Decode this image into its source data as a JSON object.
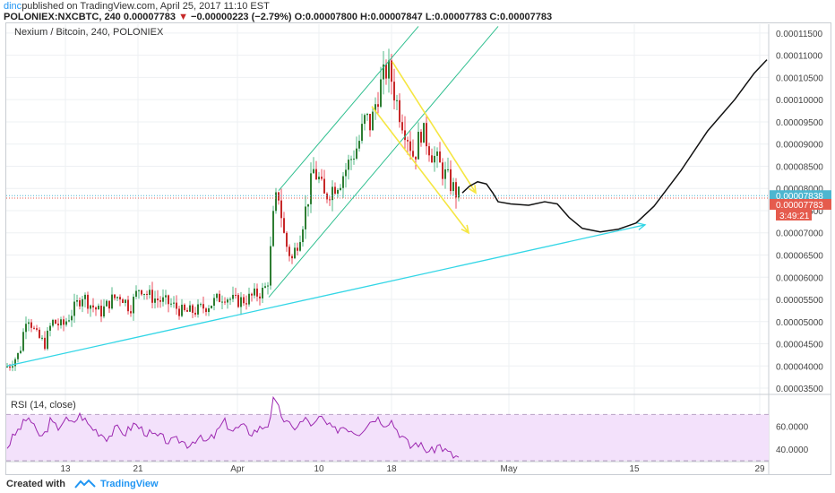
{
  "header": {
    "user": "dinc",
    "published": "published on TradingView.com, April 25, 2017 11:10 EST",
    "symbol": "POLONIEX:NXCBTC, 240",
    "last": "0.00007783",
    "change_marker": "▼",
    "change": "−0.00000223 (−2.79%)",
    "o_label": "O:",
    "o": "0.00007800",
    "h_label": "H:",
    "h": "0.00007847",
    "l_label": "L:",
    "l": "0.00007783",
    "c_label": "C:",
    "c": "0.00007783"
  },
  "footer": {
    "created_with": "Created with",
    "brand": "TradingView"
  },
  "colors": {
    "up": "#53b987",
    "down": "#eb4d5c",
    "body_up": "#2e7d32",
    "body_down": "#c62828",
    "trendline": "#33d6e6",
    "channel": "#2fbf8f",
    "arrow": "#f5e642",
    "projection": "#111111",
    "rsi_line": "#9c27b0",
    "rsi_band": "#f3e1fb",
    "bid_label": "#4db6d0",
    "last_label": "#e55b4d"
  },
  "chart_data": [
    {
      "type": "candlestick",
      "title": "Nexium / Bitcoin, 240, POLONIEX",
      "x_ticks": [
        "13",
        "21",
        "Apr",
        "10",
        "18",
        "May",
        "15",
        "29"
      ],
      "y_ticks": [
        "0.00011500",
        "0.00011000",
        "0.00010500",
        "0.00010000",
        "0.00009500",
        "0.00009000",
        "0.00008500",
        "0.00008000",
        "0.00007500",
        "0.00007000",
        "0.00006500",
        "0.00006000",
        "0.00005500",
        "0.00005000",
        "0.00004500",
        "0.00004000",
        "0.00003500"
      ],
      "ylim": [
        3.4e-05,
        1.17e-05
      ],
      "price_labels": {
        "bid": "0.00007838",
        "last": "0.00007783",
        "countdown": "3:49:21"
      },
      "series": [
        {
          "name": "price",
          "anchors": [
            [
              0,
              3.95e-05
            ],
            [
              10,
              4e-05
            ],
            [
              22,
              4.3e-05
            ],
            [
              30,
              5.2e-05
            ],
            [
              40,
              4.7e-05
            ],
            [
              50,
              4.5e-05
            ],
            [
              58,
              5e-05
            ],
            [
              70,
              4.9e-05
            ],
            [
              80,
              5.2e-05
            ],
            [
              92,
              5.6e-05
            ],
            [
              100,
              5.4e-05
            ],
            [
              112,
              5.2e-05
            ],
            [
              125,
              5.5e-05
            ],
            [
              135,
              5.6e-05
            ],
            [
              145,
              5.3e-05
            ],
            [
              156,
              5.8e-05
            ],
            [
              165,
              5.6e-05
            ],
            [
              175,
              5.5e-05
            ],
            [
              190,
              5.4e-05
            ],
            [
              205,
              5.2e-05
            ],
            [
              220,
              5.25e-05
            ],
            [
              235,
              5.4e-05
            ],
            [
              250,
              5.6e-05
            ],
            [
              262,
              5.45e-05
            ],
            [
              275,
              5.5e-05
            ],
            [
              285,
              5.6e-05
            ],
            [
              295,
              5.7e-05
            ],
            [
              300,
              6e-05
            ],
            [
              304,
              7.2e-05
            ],
            [
              310,
              8e-05
            ],
            [
              318,
              6.8e-05
            ],
            [
              326,
              6.4e-05
            ],
            [
              335,
              7e-05
            ],
            [
              342,
              7.6e-05
            ],
            [
              350,
              8.4e-05
            ],
            [
              356,
              8.2e-05
            ],
            [
              362,
              7.8e-05
            ],
            [
              370,
              8e-05
            ],
            [
              380,
              8.2e-05
            ],
            [
              390,
              8.6e-05
            ],
            [
              400,
              9e-05
            ],
            [
              408,
              9.6e-05
            ],
            [
              414,
              9.4e-05
            ],
            [
              420,
              0.0001
            ],
            [
              426,
              0.000104
            ],
            [
              432,
              0.000107
            ],
            [
              436,
              0.0001055
            ],
            [
              442,
              0.0001
            ],
            [
              448,
              9.6e-05
            ],
            [
              455,
              9.2e-05
            ],
            [
              462,
              8.7e-05
            ],
            [
              470,
              9.3e-05
            ],
            [
              476,
              9.1e-05
            ],
            [
              482,
              8.8e-05
            ],
            [
              488,
              8.6e-05
            ],
            [
              494,
              8.4e-05
            ],
            [
              500,
              8.2e-05
            ],
            [
              506,
              8e-05
            ],
            [
              512,
              7.83e-05
            ]
          ]
        },
        {
          "name": "projection",
          "anchors": [
            [
              516,
              7.9e-05
            ],
            [
              524,
              8.05e-05
            ],
            [
              533,
              8.15e-05
            ],
            [
              543,
              8.1e-05
            ],
            [
              550,
              7.9e-05
            ],
            [
              556,
              7.7e-05
            ],
            [
              570,
              7.65e-05
            ],
            [
              590,
              7.62e-05
            ],
            [
              608,
              7.7e-05
            ],
            [
              622,
              7.65e-05
            ],
            [
              635,
              7.35e-05
            ],
            [
              650,
              7.1e-05
            ],
            [
              670,
              7.02e-05
            ],
            [
              690,
              7.08e-05
            ],
            [
              710,
              7.22e-05
            ],
            [
              730,
              7.6e-05
            ],
            [
              760,
              8.4e-05
            ],
            [
              790,
              9.3e-05
            ],
            [
              820,
              0.0001
            ],
            [
              842,
              0.000106
            ],
            [
              856,
              0.000109
            ]
          ]
        },
        {
          "name": "trendline",
          "line": [
            [
              8,
              4e-05
            ],
            [
              720,
              7.18e-05
            ]
          ]
        },
        {
          "name": "channel_upper",
          "line": [
            [
              311,
              7.95e-05
            ],
            [
              467,
              0.0001165
            ]
          ]
        },
        {
          "name": "channel_lower",
          "line": [
            [
              300,
              5.55e-05
            ],
            [
              556,
              0.0001165
            ]
          ]
        },
        {
          "name": "arrow_1",
          "line": [
            [
              438,
              0.0001085
            ],
            [
              531,
              7.9e-05
            ]
          ]
        },
        {
          "name": "arrow_2",
          "line": [
            [
              415,
              9.85e-05
            ],
            [
              523,
              7e-05
            ]
          ]
        }
      ]
    },
    {
      "type": "line",
      "title": "RSI (14, close)",
      "y_ticks": [
        "60.0000",
        "40.0000"
      ],
      "ylim": [
        30,
        85
      ],
      "bands": [
        30,
        70
      ],
      "series": [
        {
          "name": "RSI",
          "anchors": [
            [
              0,
              48
            ],
            [
              8,
              42
            ],
            [
              16,
              52
            ],
            [
              24,
              60
            ],
            [
              32,
              68
            ],
            [
              40,
              55
            ],
            [
              48,
              50
            ],
            [
              56,
              64
            ],
            [
              64,
              58
            ],
            [
              72,
              66
            ],
            [
              80,
              62
            ],
            [
              90,
              70
            ],
            [
              100,
              60
            ],
            [
              110,
              55
            ],
            [
              120,
              50
            ],
            [
              130,
              58
            ],
            [
              140,
              54
            ],
            [
              150,
              62
            ],
            [
              160,
              56
            ],
            [
              170,
              52
            ],
            [
              180,
              50
            ],
            [
              190,
              46
            ],
            [
              200,
              48
            ],
            [
              210,
              44
            ],
            [
              220,
              50
            ],
            [
              230,
              46
            ],
            [
              240,
              52
            ],
            [
              250,
              64
            ],
            [
              260,
              56
            ],
            [
              270,
              60
            ],
            [
              280,
              54
            ],
            [
              290,
              58
            ],
            [
              300,
              62
            ],
            [
              305,
              82
            ],
            [
              310,
              76
            ],
            [
              318,
              64
            ],
            [
              326,
              58
            ],
            [
              334,
              62
            ],
            [
              342,
              66
            ],
            [
              350,
              60
            ],
            [
              358,
              68
            ],
            [
              366,
              60
            ],
            [
              374,
              56
            ],
            [
              382,
              60
            ],
            [
              390,
              58
            ],
            [
              400,
              54
            ],
            [
              410,
              62
            ],
            [
              420,
              68
            ],
            [
              430,
              62
            ],
            [
              436,
              66
            ],
            [
              442,
              58
            ],
            [
              450,
              50
            ],
            [
              458,
              42
            ],
            [
              466,
              46
            ],
            [
              474,
              40
            ],
            [
              482,
              38
            ],
            [
              490,
              44
            ],
            [
              498,
              38
            ],
            [
              506,
              34
            ],
            [
              512,
              33
            ]
          ]
        }
      ]
    }
  ]
}
